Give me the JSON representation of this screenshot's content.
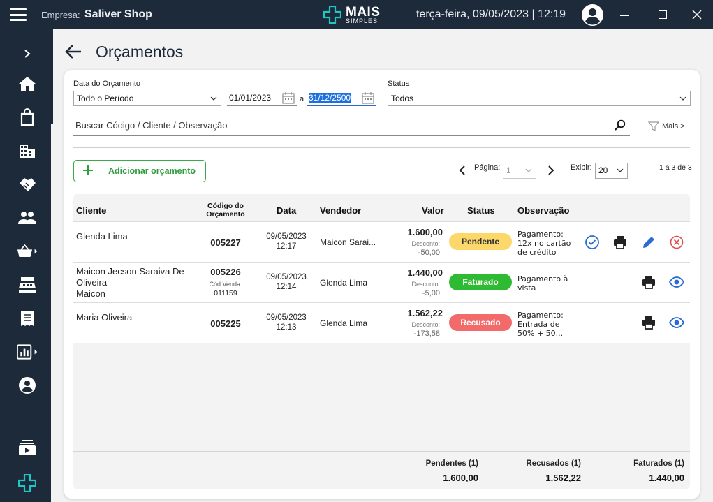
{
  "header": {
    "empresa_label": "Empresa:",
    "empresa_name": "Saliver Shop",
    "logo_line1": "MAIS",
    "logo_line2": "SIMPLES",
    "datetime": "terça-feira, 09/05/2023 | 12:19"
  },
  "page": {
    "title": "Orçamentos"
  },
  "filters": {
    "date_label": "Data do Orçamento",
    "period_value": "Todo o Período",
    "date_from": "01/01/2023",
    "date_sep": "a",
    "date_to": "31/12/2500",
    "status_label": "Status",
    "status_value": "Todos",
    "search_placeholder": "Buscar Código / Cliente / Observação",
    "more_label": "Mais >"
  },
  "toolbar": {
    "add_label": "Adicionar orçamento",
    "page_label": "Página:",
    "page_value": "1",
    "show_label": "Exibir:",
    "show_value": "20",
    "range_text": "1 a 3 de 3"
  },
  "table": {
    "columns": {
      "cliente": "Cliente",
      "codigo_l1": "Código do",
      "codigo_l2": "Orçamento",
      "data": "Data",
      "vendedor": "Vendedor",
      "valor": "Valor",
      "status": "Status",
      "observacao": "Observação"
    },
    "rows": [
      {
        "cliente_l1": "Glenda Lima",
        "cliente_l2": "",
        "cliente_l3": "",
        "codigo": "005227",
        "cod_venda_label": "",
        "cod_venda": "",
        "data": "09/05/2023",
        "hora": "12:17",
        "vendedor": "Maicon Sarai...",
        "valor": "1.600,00",
        "desconto_label": "Desconto:",
        "desconto": "-50,00",
        "status": "Pendente",
        "obs_l1": "Pagamento:",
        "obs_l2": "12x no cartão",
        "obs_l3": "de crédito"
      },
      {
        "cliente_l1": "Maicon Jecson Saraiva De",
        "cliente_l2": "Oliveira",
        "cliente_l3": "Maicon",
        "codigo": "005226",
        "cod_venda_label": "Cód.Venda:",
        "cod_venda": "011159",
        "data": "09/05/2023",
        "hora": "12:14",
        "vendedor": "Glenda Lima",
        "valor": "1.440,00",
        "desconto_label": "Desconto:",
        "desconto": "-5,00",
        "status": "Faturado",
        "obs_l1": "Pagamento à",
        "obs_l2": "vista",
        "obs_l3": ""
      },
      {
        "cliente_l1": "Maria Oliveira",
        "cliente_l2": "",
        "cliente_l3": "",
        "codigo": "005225",
        "cod_venda_label": "",
        "cod_venda": "",
        "data": "09/05/2023",
        "hora": "12:13",
        "vendedor": "Glenda Lima",
        "valor": "1.562,22",
        "desconto_label": "Desconto:",
        "desconto": "-173,58",
        "status": "Recusado",
        "obs_l1": "Pagamento:",
        "obs_l2": "Entrada de",
        "obs_l3": "50% + 50..."
      }
    ]
  },
  "totals": {
    "pendentes_label": "Pendentes (1)",
    "pendentes_value": "1.600,00",
    "recusados_label": "Recusados (1)",
    "recusados_value": "1.562,22",
    "faturados_label": "Faturados (1)",
    "faturados_value": "1.440,00"
  },
  "colors": {
    "pendente": "#fcd76a",
    "faturado": "#2fba33",
    "recusado": "#f26a6a",
    "accent": "#2a6bd4",
    "sidebar": "#1d2a3a",
    "brand_teal": "#1ec6c4"
  },
  "icons": {
    "sidebar": [
      "chevron-right-icon",
      "home-icon",
      "shopping-bag-icon",
      "building-icon",
      "handshake-icon",
      "people-icon",
      "basket-icon",
      "cash-register-icon",
      "receipt-icon",
      "chart-icon",
      "account-icon",
      "video-icon",
      "logo-cross-icon"
    ],
    "row_actions": [
      "check-circle-icon",
      "print-icon",
      "edit-icon",
      "cancel-icon",
      "view-icon"
    ]
  }
}
